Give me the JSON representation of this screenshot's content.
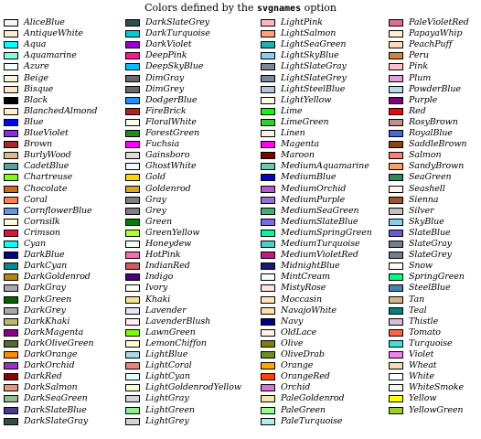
{
  "header": {
    "title_before": "Colors defined by the",
    "title_code": "svgnames",
    "title_after": "option"
  },
  "colors": [
    [
      {
        "name": "AliceBlue",
        "hex": "#F0F8FF"
      },
      {
        "name": "AntiqueWhite",
        "hex": "#FAEBD7"
      },
      {
        "name": "Aqua",
        "hex": "#00FFFF"
      },
      {
        "name": "Aquamarine",
        "hex": "#7FFFD4"
      },
      {
        "name": "Azure",
        "hex": "#F0FFFF"
      },
      {
        "name": "Beige",
        "hex": "#F5F5DC"
      },
      {
        "name": "Bisque",
        "hex": "#FFE4C4"
      },
      {
        "name": "Black",
        "hex": "#000000"
      },
      {
        "name": "BlanchedAlmond",
        "hex": "#FFEBCD"
      },
      {
        "name": "Blue",
        "hex": "#0000FF"
      },
      {
        "name": "BlueViolet",
        "hex": "#8A2BE2"
      },
      {
        "name": "Brown",
        "hex": "#A52A2A"
      },
      {
        "name": "BurlyWood",
        "hex": "#DEB887"
      },
      {
        "name": "CadetBlue",
        "hex": "#5F9EA0"
      },
      {
        "name": "Chartreuse",
        "hex": "#7FFF00"
      },
      {
        "name": "Chocolate",
        "hex": "#D2691E"
      },
      {
        "name": "Coral",
        "hex": "#FF7F50"
      },
      {
        "name": "CornflowerBlue",
        "hex": "#6495ED"
      },
      {
        "name": "Cornsilk",
        "hex": "#FFF8DC"
      },
      {
        "name": "Crimson",
        "hex": "#DC143C"
      },
      {
        "name": "Cyan",
        "hex": "#00FFFF"
      },
      {
        "name": "DarkBlue",
        "hex": "#00008B"
      },
      {
        "name": "DarkCyan",
        "hex": "#008B8B"
      },
      {
        "name": "DarkGoldenrod",
        "hex": "#B8860B"
      },
      {
        "name": "DarkGray",
        "hex": "#A9A9A9"
      },
      {
        "name": "DarkGreen",
        "hex": "#006400"
      },
      {
        "name": "DarkGrey",
        "hex": "#A9A9A9"
      },
      {
        "name": "DarkKhaki",
        "hex": "#BDB76B"
      },
      {
        "name": "DarkMagenta",
        "hex": "#8B008B"
      },
      {
        "name": "DarkOliveGreen",
        "hex": "#556B2F"
      },
      {
        "name": "DarkOrange",
        "hex": "#FF8C00"
      },
      {
        "name": "DarkOrchid",
        "hex": "#9932CC"
      },
      {
        "name": "DarkRed",
        "hex": "#8B0000"
      },
      {
        "name": "DarkSalmon",
        "hex": "#E9967A"
      },
      {
        "name": "DarkSeaGreen",
        "hex": "#8FBC8F"
      },
      {
        "name": "DarkSlateBlue",
        "hex": "#483D8B"
      },
      {
        "name": "DarkSlateGray",
        "hex": "#2F4F4F"
      }
    ],
    [
      {
        "name": "DarkSlateGrey",
        "hex": "#2F4F4F"
      },
      {
        "name": "DarkTurquoise",
        "hex": "#00CED1"
      },
      {
        "name": "DarkViolet",
        "hex": "#9400D3"
      },
      {
        "name": "DeepPink",
        "hex": "#FF1493"
      },
      {
        "name": "DeepSkyBlue",
        "hex": "#00BFFF"
      },
      {
        "name": "DimGray",
        "hex": "#696969"
      },
      {
        "name": "DimGrey",
        "hex": "#696969"
      },
      {
        "name": "DodgerBlue",
        "hex": "#1E90FF"
      },
      {
        "name": "FireBrick",
        "hex": "#B22222"
      },
      {
        "name": "FloralWhite",
        "hex": "#FFFAF0"
      },
      {
        "name": "ForestGreen",
        "hex": "#228B22"
      },
      {
        "name": "Fuchsia",
        "hex": "#FF00FF"
      },
      {
        "name": "Gainsboro",
        "hex": "#DCDCDC"
      },
      {
        "name": "GhostWhite",
        "hex": "#F8F8FF"
      },
      {
        "name": "Gold",
        "hex": "#FFD700"
      },
      {
        "name": "Goldenrod",
        "hex": "#DAA520"
      },
      {
        "name": "Gray",
        "hex": "#808080"
      },
      {
        "name": "Grey",
        "hex": "#808080"
      },
      {
        "name": "Green",
        "hex": "#008000"
      },
      {
        "name": "GreenYellow",
        "hex": "#ADFF2F"
      },
      {
        "name": "Honeydew",
        "hex": "#F0FFF0"
      },
      {
        "name": "HotPink",
        "hex": "#FF69B4"
      },
      {
        "name": "IndianRed",
        "hex": "#CD5C5C"
      },
      {
        "name": "Indigo",
        "hex": "#4B0082"
      },
      {
        "name": "Ivory",
        "hex": "#FFFFF0"
      },
      {
        "name": "Khaki",
        "hex": "#F0E68C"
      },
      {
        "name": "Lavender",
        "hex": "#E6E6FA"
      },
      {
        "name": "LavenderBlush",
        "hex": "#FFF0F5"
      },
      {
        "name": "LawnGreen",
        "hex": "#7CFC00"
      },
      {
        "name": "LemonChiffon",
        "hex": "#FFFACD"
      },
      {
        "name": "LightBlue",
        "hex": "#ADD8E6"
      },
      {
        "name": "LightCoral",
        "hex": "#F08080"
      },
      {
        "name": "LightCyan",
        "hex": "#E0FFFF"
      },
      {
        "name": "LightGoldenrodYellow",
        "hex": "#FAFAD2"
      },
      {
        "name": "LightGray",
        "hex": "#D3D3D3"
      },
      {
        "name": "LightGreen",
        "hex": "#90EE90"
      },
      {
        "name": "LightGrey",
        "hex": "#D3D3D3"
      }
    ],
    [
      {
        "name": "LightPink",
        "hex": "#FFB6C1"
      },
      {
        "name": "LightSalmon",
        "hex": "#FFA07A"
      },
      {
        "name": "LightSeaGreen",
        "hex": "#20B2AA"
      },
      {
        "name": "LightSkyBlue",
        "hex": "#87CEFA"
      },
      {
        "name": "LightSlateGray",
        "hex": "#778899"
      },
      {
        "name": "LightSlateGrey",
        "hex": "#778899"
      },
      {
        "name": "LightSteelBlue",
        "hex": "#B0C4DE"
      },
      {
        "name": "LightYellow",
        "hex": "#FFFFE0"
      },
      {
        "name": "Lime",
        "hex": "#00FF00"
      },
      {
        "name": "LimeGreen",
        "hex": "#32CD32"
      },
      {
        "name": "Linen",
        "hex": "#FAF0E6"
      },
      {
        "name": "Magenta",
        "hex": "#FF00FF"
      },
      {
        "name": "Maroon",
        "hex": "#800000"
      },
      {
        "name": "MediumAquamarine",
        "hex": "#66CDAA"
      },
      {
        "name": "MediumBlue",
        "hex": "#0000CD"
      },
      {
        "name": "MediumOrchid",
        "hex": "#BA55D3"
      },
      {
        "name": "MediumPurple",
        "hex": "#9370DB"
      },
      {
        "name": "MediumSeaGreen",
        "hex": "#3CB371"
      },
      {
        "name": "MediumSlateBlue",
        "hex": "#7B68EE"
      },
      {
        "name": "MediumSpringGreen",
        "hex": "#00FA9A"
      },
      {
        "name": "MediumTurquoise",
        "hex": "#48D1CC"
      },
      {
        "name": "MediumVioletRed",
        "hex": "#C71585"
      },
      {
        "name": "MidnightBlue",
        "hex": "#191970"
      },
      {
        "name": "MintCream",
        "hex": "#F5FFFA"
      },
      {
        "name": "MistyRose",
        "hex": "#FFE4E1"
      },
      {
        "name": "Moccasin",
        "hex": "#FFE4B5"
      },
      {
        "name": "NavajoWhite",
        "hex": "#FFDEAD"
      },
      {
        "name": "Navy",
        "hex": "#000080"
      },
      {
        "name": "OldLace",
        "hex": "#FDF5E6"
      },
      {
        "name": "Olive",
        "hex": "#808000"
      },
      {
        "name": "OliveDrab",
        "hex": "#6B8E23"
      },
      {
        "name": "Orange",
        "hex": "#FFA500"
      },
      {
        "name": "OrangeRed",
        "hex": "#FF4500"
      },
      {
        "name": "Orchid",
        "hex": "#DA70D6"
      },
      {
        "name": "PaleGoldenrod",
        "hex": "#EEE8AA"
      },
      {
        "name": "PaleGreen",
        "hex": "#98FB98"
      },
      {
        "name": "PaleTurquoise",
        "hex": "#AFEEEE"
      }
    ],
    [
      {
        "name": "PaleVioletRed",
        "hex": "#DB7093"
      },
      {
        "name": "PapayaWhip",
        "hex": "#FFEFD5"
      },
      {
        "name": "PeachPuff",
        "hex": "#FFDAB9"
      },
      {
        "name": "Peru",
        "hex": "#CD853F"
      },
      {
        "name": "Pink",
        "hex": "#FFC0CB"
      },
      {
        "name": "Plum",
        "hex": "#DDA0DD"
      },
      {
        "name": "PowderBlue",
        "hex": "#B0E0E6"
      },
      {
        "name": "Purple",
        "hex": "#800080"
      },
      {
        "name": "Red",
        "hex": "#FF0000"
      },
      {
        "name": "RosyBrown",
        "hex": "#BC8F8F"
      },
      {
        "name": "RoyalBlue",
        "hex": "#4169E1"
      },
      {
        "name": "SaddleBrown",
        "hex": "#8B4513"
      },
      {
        "name": "Salmon",
        "hex": "#FA8072"
      },
      {
        "name": "SandyBrown",
        "hex": "#F4A460"
      },
      {
        "name": "SeaGreen",
        "hex": "#2E8B57"
      },
      {
        "name": "Seashell",
        "hex": "#FFF5EE"
      },
      {
        "name": "Sienna",
        "hex": "#A0522D"
      },
      {
        "name": "Silver",
        "hex": "#C0C0C0"
      },
      {
        "name": "SkyBlue",
        "hex": "#87CEEB"
      },
      {
        "name": "SlateBlue",
        "hex": "#6A5ACD"
      },
      {
        "name": "SlateGray",
        "hex": "#708090"
      },
      {
        "name": "SlateGrey",
        "hex": "#708090"
      },
      {
        "name": "Snow",
        "hex": "#FFFAFA"
      },
      {
        "name": "SpringGreen",
        "hex": "#00FF7F"
      },
      {
        "name": "SteelBlue",
        "hex": "#4682B4"
      },
      {
        "name": "Tan",
        "hex": "#D2B48C"
      },
      {
        "name": "Teal",
        "hex": "#008080"
      },
      {
        "name": "Thistle",
        "hex": "#D8BFD8"
      },
      {
        "name": "Tomato",
        "hex": "#FF6347"
      },
      {
        "name": "Turquoise",
        "hex": "#40E0D0"
      },
      {
        "name": "Violet",
        "hex": "#EE82EE"
      },
      {
        "name": "Wheat",
        "hex": "#F5DEB3"
      },
      {
        "name": "White",
        "hex": "#FFFFFF"
      },
      {
        "name": "WhiteSmoke",
        "hex": "#F5F5F5"
      },
      {
        "name": "Yellow",
        "hex": "#FFFF00"
      },
      {
        "name": "YellowGreen",
        "hex": "#9ACD32"
      }
    ]
  ]
}
